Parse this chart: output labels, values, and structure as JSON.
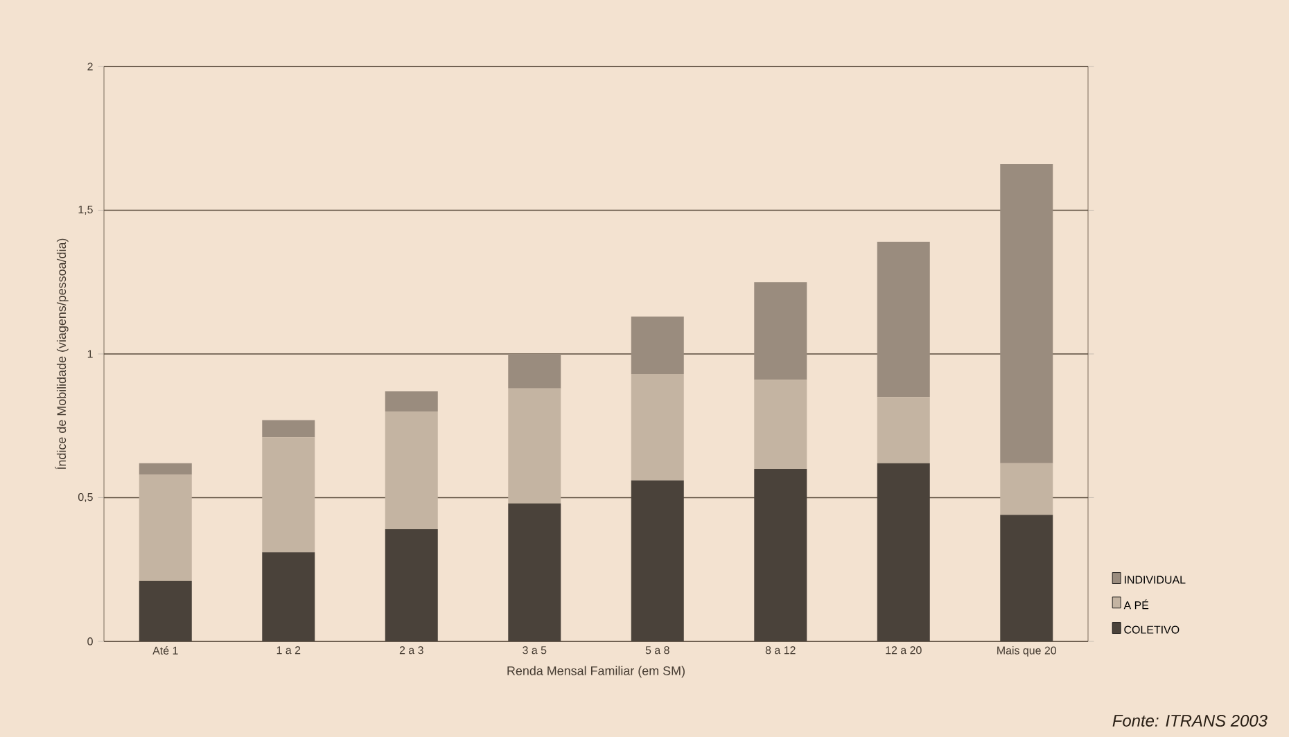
{
  "chart_data": {
    "type": "bar",
    "stacked": true,
    "xlabel": "Renda Mensal Familiar (em SM)",
    "ylabel": "Índice de Mobilidade (viagens/pessoa/dia)",
    "categories": [
      "Até 1",
      "1 a 2",
      "2 a 3",
      "3 a 5",
      "5 a 8",
      "8 a 12",
      "12 a 20",
      "Mais que 20"
    ],
    "series": [
      {
        "name": "COLETIVO",
        "color": "#4a423a",
        "values": [
          0.21,
          0.31,
          0.39,
          0.48,
          0.56,
          0.6,
          0.62,
          0.44
        ]
      },
      {
        "name": "A PÉ",
        "color": "#c4b4a2",
        "values": [
          0.37,
          0.4,
          0.41,
          0.4,
          0.37,
          0.31,
          0.23,
          0.18
        ]
      },
      {
        "name": "INDIVIDUAL",
        "color": "#9a8c7e",
        "values": [
          0.04,
          0.06,
          0.07,
          0.12,
          0.2,
          0.34,
          0.54,
          1.04
        ]
      }
    ],
    "ylim": [
      0,
      2
    ],
    "yticks": [
      0,
      {
        "value": 0.5,
        "label": "0,5"
      },
      1,
      {
        "value": 1.5,
        "label": "1,5"
      },
      2
    ],
    "grid": "y",
    "legend": "right",
    "annotations": [
      "Fonte: ITRANS 2003"
    ]
  }
}
